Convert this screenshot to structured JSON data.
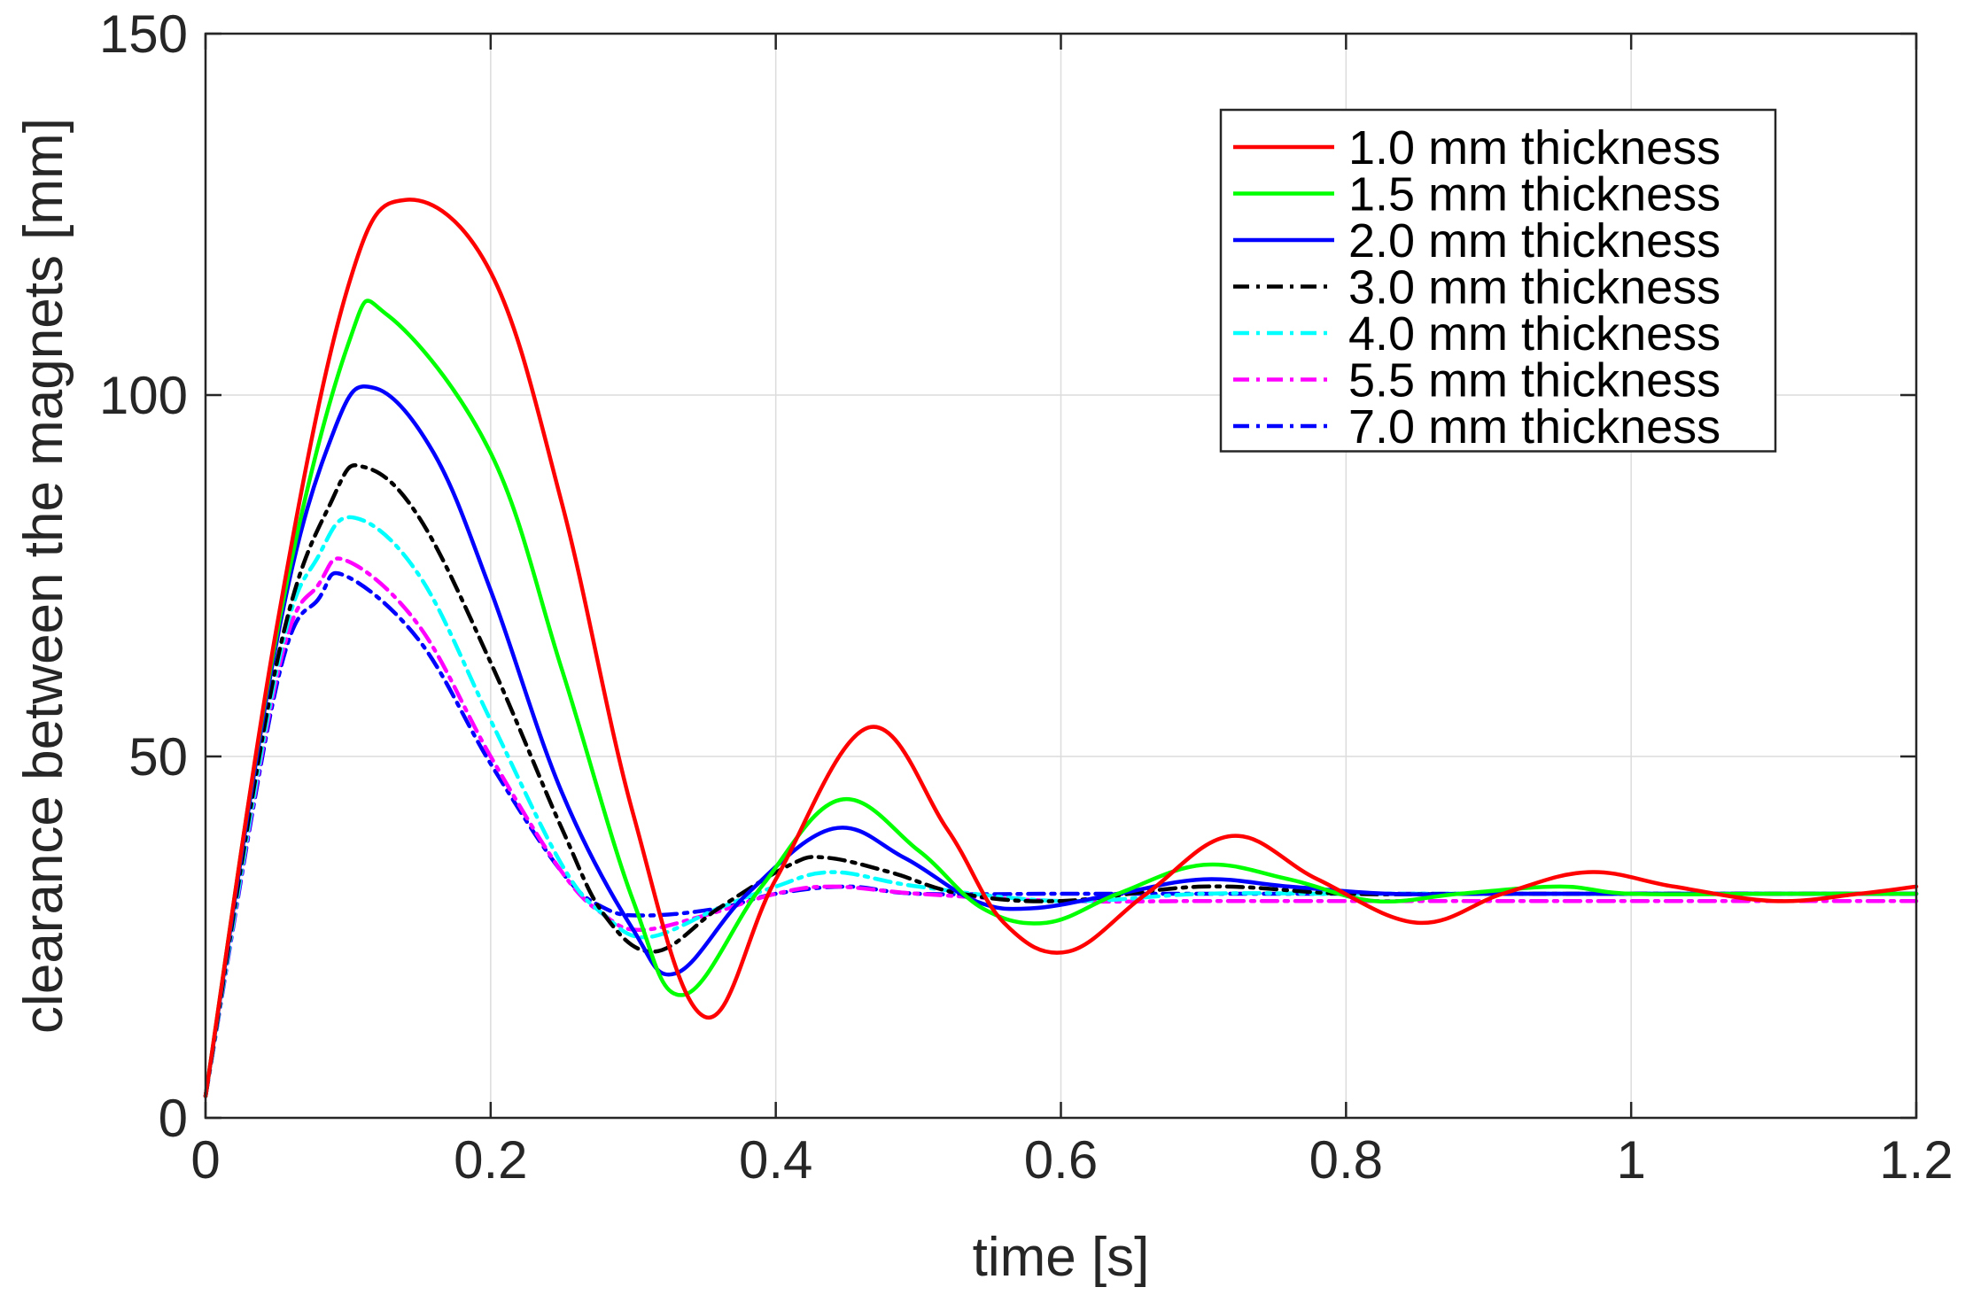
{
  "chart_data": {
    "type": "line",
    "title": "",
    "xlabel": "time [s]",
    "ylabel": "clearance between the magnets [mm]",
    "xlim": [
      0,
      1.2
    ],
    "ylim": [
      0,
      150
    ],
    "xticks": [
      0,
      0.2,
      0.4,
      0.6,
      0.8,
      1,
      1.2
    ],
    "xtick_labels": [
      "0",
      "0.2",
      "0.4",
      "0.6",
      "0.8",
      "1",
      "1.2"
    ],
    "yticks": [
      0,
      50,
      100,
      150
    ],
    "ytick_labels": [
      "0",
      "50",
      "100",
      "150"
    ],
    "grid": true,
    "legend_position": "top-right",
    "series": [
      {
        "name": "1.0 mm thickness",
        "color": "#ff0000",
        "style": "solid",
        "x": [
          0,
          0.05,
          0.1,
          0.14,
          0.2,
          0.25,
          0.3,
          0.35,
          0.4,
          0.465,
          0.52,
          0.56,
          0.605,
          0.66,
          0.72,
          0.78,
          0.85,
          0.91,
          0.97,
          1.03,
          1.1,
          1.16,
          1.2
        ],
        "y": [
          3,
          68,
          115,
          127,
          117,
          85,
          42,
          14,
          33,
          54,
          40,
          27,
          23,
          31,
          39,
          33,
          27,
          31,
          34,
          32,
          30,
          31,
          32
        ]
      },
      {
        "name": "1.5 mm thickness",
        "color": "#00ff00",
        "style": "solid",
        "x": [
          0,
          0.05,
          0.1,
          0.128,
          0.2,
          0.25,
          0.3,
          0.335,
          0.39,
          0.445,
          0.5,
          0.545,
          0.59,
          0.64,
          0.7,
          0.76,
          0.82,
          0.88,
          0.95,
          1.0,
          1.1,
          1.2
        ],
        "y": [
          3,
          67,
          107,
          111,
          92,
          62,
          30,
          17,
          32,
          44,
          37,
          29,
          27,
          31,
          35,
          33,
          30,
          31,
          32,
          31,
          31,
          31
        ]
      },
      {
        "name": "2.0 mm thickness",
        "color": "#0000ff",
        "style": "solid",
        "x": [
          0,
          0.05,
          0.09,
          0.118,
          0.16,
          0.2,
          0.25,
          0.3,
          0.33,
          0.38,
          0.44,
          0.49,
          0.54,
          0.58,
          0.64,
          0.7,
          0.76,
          0.83,
          0.9,
          1.0,
          1.1,
          1.2
        ],
        "y": [
          3,
          66,
          95,
          101,
          92,
          73,
          45,
          26,
          20,
          31,
          40,
          36,
          30,
          29,
          31,
          33,
          32,
          31,
          31,
          31,
          31,
          31
        ]
      },
      {
        "name": "3.0 mm thickness",
        "color": "#000000",
        "style": "dashdot",
        "x": [
          0,
          0.05,
          0.09,
          0.112,
          0.15,
          0.2,
          0.25,
          0.28,
          0.315,
          0.36,
          0.41,
          0.435,
          0.48,
          0.53,
          0.6,
          0.7,
          0.8,
          0.9,
          1.0,
          1.1,
          1.2
        ],
        "y": [
          3,
          63,
          86,
          90,
          83,
          63,
          40,
          28,
          23,
          29,
          35,
          36,
          34,
          31,
          30,
          32,
          31,
          31,
          31,
          31,
          31
        ]
      },
      {
        "name": "4.0 mm thickness",
        "color": "#00ffff",
        "style": "dashdot",
        "x": [
          0,
          0.05,
          0.08,
          0.105,
          0.15,
          0.2,
          0.25,
          0.28,
          0.31,
          0.36,
          0.4,
          0.44,
          0.5,
          0.6,
          0.7,
          0.8,
          0.9,
          1.0,
          1.1,
          1.2
        ],
        "y": [
          3,
          62,
          78,
          83,
          75,
          55,
          35,
          28,
          25,
          29,
          32,
          34,
          32,
          30,
          31,
          31,
          31,
          31,
          31,
          31
        ]
      },
      {
        "name": "5.5 mm thickness",
        "color": "#ff00ff",
        "style": "dashdot",
        "x": [
          0,
          0.05,
          0.08,
          0.1,
          0.15,
          0.2,
          0.25,
          0.28,
          0.305,
          0.35,
          0.4,
          0.44,
          0.5,
          0.6,
          0.7,
          0.8,
          0.9,
          1.0,
          1.1,
          1.2
        ],
        "y": [
          3,
          61,
          74,
          77,
          68,
          50,
          34,
          28,
          26,
          28,
          31,
          32,
          31,
          30,
          30,
          30,
          30,
          30,
          30,
          30
        ]
      },
      {
        "name": "7.0 mm thickness",
        "color": "#0000ff",
        "style": "dashdot",
        "x": [
          0,
          0.05,
          0.08,
          0.098,
          0.15,
          0.2,
          0.25,
          0.28,
          0.31,
          0.36,
          0.4,
          0.45,
          0.5,
          0.6,
          0.7,
          0.8,
          0.9,
          1.0,
          1.1,
          1.2
        ],
        "y": [
          3,
          60,
          72,
          75,
          66,
          49,
          34,
          29,
          28,
          29,
          31,
          32,
          31,
          31,
          31,
          31,
          31,
          31,
          31,
          31
        ]
      }
    ]
  }
}
